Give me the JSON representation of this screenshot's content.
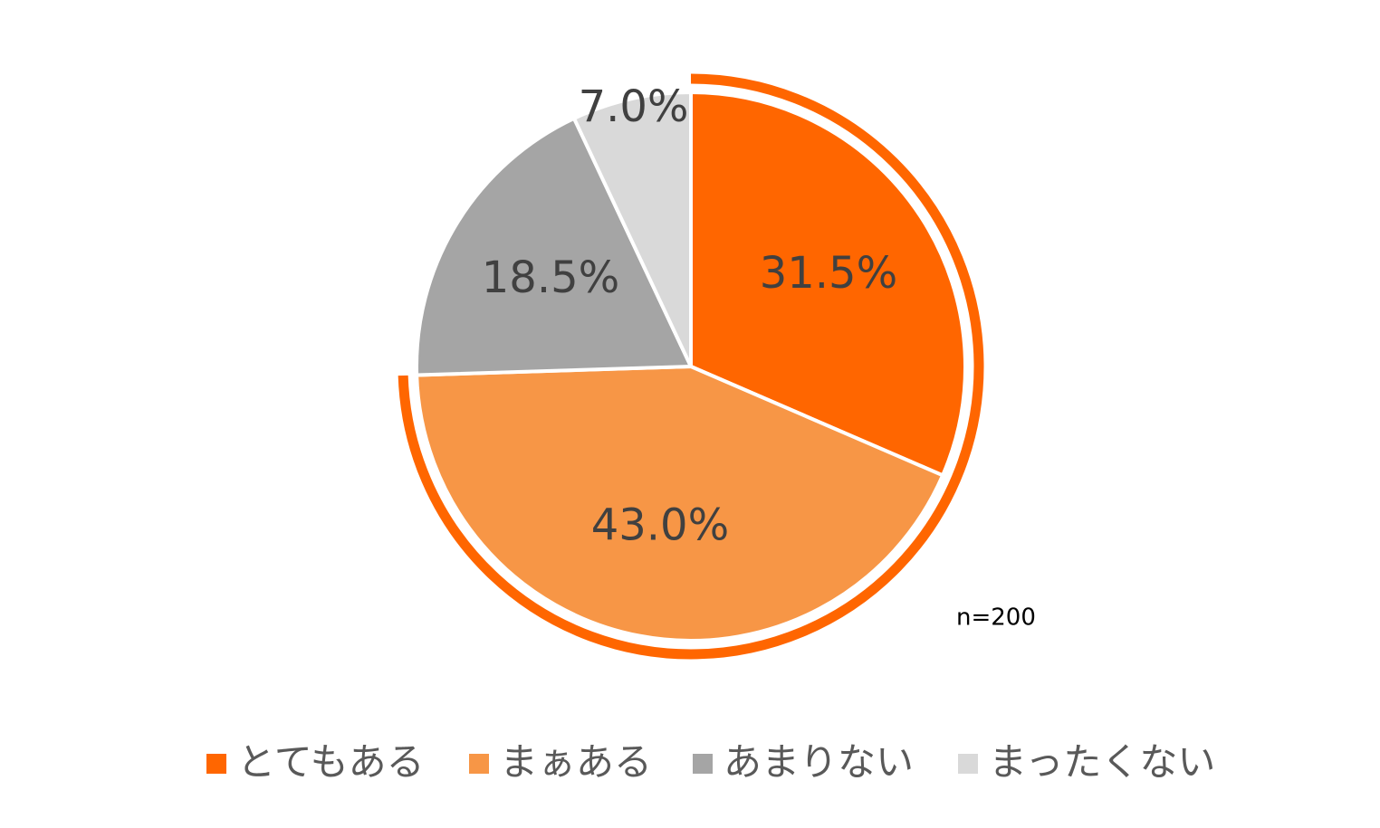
{
  "chart_data": {
    "type": "pie",
    "categories": [
      "とてもある",
      "まぁある",
      "あまりない",
      "まったくない"
    ],
    "values": [
      31.5,
      43.0,
      18.5,
      7.0
    ],
    "value_labels": [
      "31.5%",
      "43.0%",
      "18.5%",
      "7.0%"
    ],
    "colors": [
      "#ff6600",
      "#f79646",
      "#a5a5a5",
      "#d9d9d9"
    ],
    "annotation": "n=200",
    "legend": "bottom"
  }
}
